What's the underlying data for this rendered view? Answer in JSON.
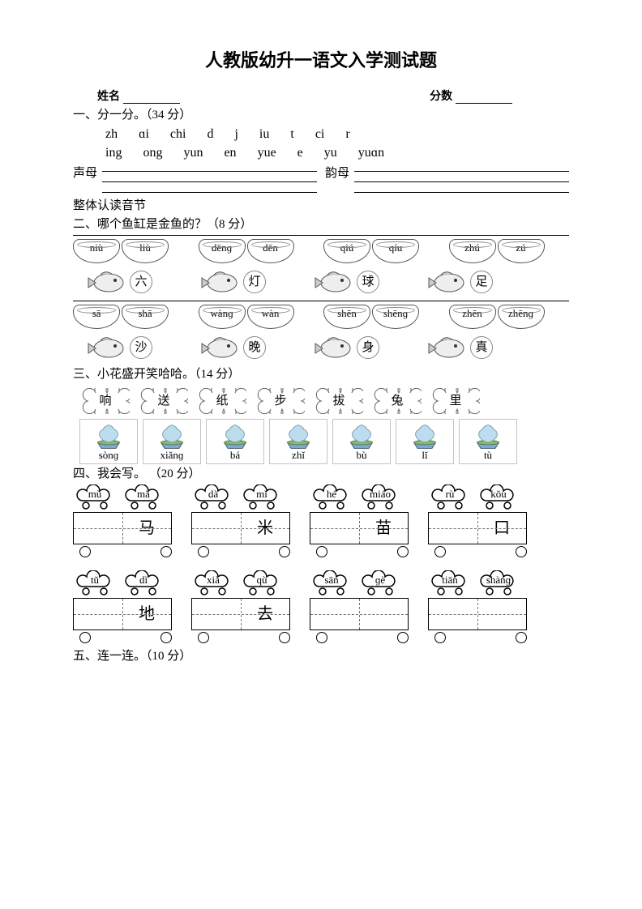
{
  "title": "人教版幼升一语文入学测试题",
  "header": {
    "name_label": "姓名",
    "score_label": "分数"
  },
  "q1": {
    "heading": "一、分一分。（34 分）",
    "row1": [
      "zh",
      "ɑi",
      "chi",
      "d",
      "j",
      "iu",
      "t",
      "ci",
      "r"
    ],
    "row2": [
      "ing",
      "ong",
      "yun",
      "en",
      "yue",
      "e",
      "yu",
      "yuɑn"
    ],
    "shengmu": "声母",
    "yunmu": "韵母",
    "whole": "整体认读音节"
  },
  "q2": {
    "heading": "二、哪个鱼缸是金鱼的？（8 分）",
    "rows": [
      {
        "bowls": [
          [
            "niù",
            "liù"
          ],
          [
            "dēnɡ",
            "dēn"
          ],
          [
            "qiú",
            "qíu"
          ],
          [
            "zhú",
            "zú"
          ]
        ],
        "fish": [
          "六",
          "灯",
          "球",
          "足"
        ]
      },
      {
        "bowls": [
          [
            "sā",
            "shā"
          ],
          [
            "wànɡ",
            "wàn"
          ],
          [
            "shēn",
            "shēnɡ"
          ],
          [
            "zhēn",
            "zhēnɡ"
          ]
        ],
        "fish": [
          "沙",
          "晚",
          "身",
          "真"
        ]
      }
    ]
  },
  "q3": {
    "heading": "三、小花盛开笑哈哈。（14 分）",
    "flowers": [
      "响",
      "送",
      "纸",
      "步",
      "拔",
      "兔",
      "里"
    ],
    "pots": [
      "sònɡ",
      "xiǎnɡ",
      "bá",
      "zhǐ",
      "bù",
      "lǐ",
      "tù"
    ]
  },
  "q4": {
    "heading": "四、我会写。    （20 分）",
    "cells": [
      {
        "clouds": [
          "mù",
          "mǎ"
        ],
        "known": "马"
      },
      {
        "clouds": [
          "dà",
          "mǐ"
        ],
        "known": "米"
      },
      {
        "clouds": [
          "hé",
          "miáo"
        ],
        "known": "苗"
      },
      {
        "clouds": [
          "rù",
          "kǒu"
        ],
        "known": "口"
      },
      {
        "clouds": [
          "tǔ",
          "dì"
        ],
        "known": "地"
      },
      {
        "clouds": [
          "xià",
          "qù"
        ],
        "known": "去"
      },
      {
        "clouds": [
          "sān",
          "ɡè"
        ],
        "known": ""
      },
      {
        "clouds": [
          "tiān",
          "shànɡ"
        ],
        "known": ""
      }
    ]
  },
  "q5": {
    "heading": "五、连一连。（10 分）"
  }
}
